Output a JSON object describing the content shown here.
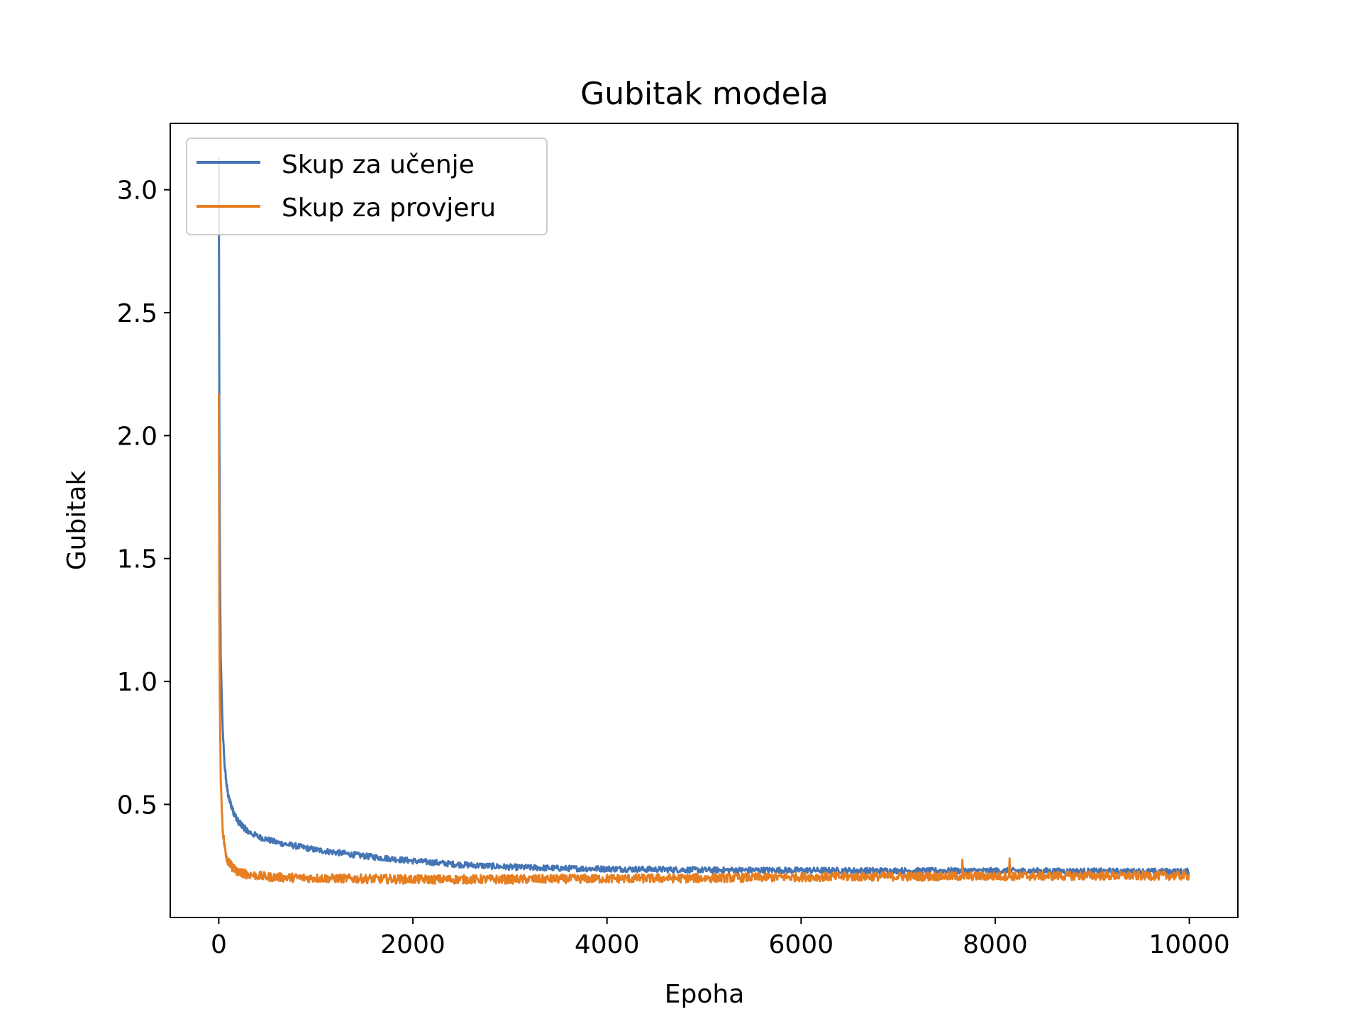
{
  "chart_data": {
    "type": "line",
    "title": "Gubitak modela",
    "xlabel": "Epoha",
    "ylabel": "Gubitak",
    "xlim": [
      -500,
      10500
    ],
    "ylim": [
      0.04,
      3.27
    ],
    "xticks": [
      0,
      2000,
      4000,
      6000,
      8000,
      10000
    ],
    "xtick_labels": [
      "0",
      "2000",
      "4000",
      "6000",
      "8000",
      "10000"
    ],
    "yticks": [
      0.5,
      1.0,
      1.5,
      2.0,
      2.5,
      3.0
    ],
    "ytick_labels": [
      "0.5",
      "1.0",
      "1.5",
      "2.0",
      "2.5",
      "3.0"
    ],
    "grid": false,
    "legend": {
      "position": "upper-left"
    },
    "series": [
      {
        "name": "Skup za učenje",
        "color": "#4575b4",
        "points": [
          [
            0,
            3.13
          ],
          [
            5,
            2.2
          ],
          [
            10,
            1.6
          ],
          [
            20,
            1.1
          ],
          [
            40,
            0.8
          ],
          [
            60,
            0.66
          ],
          [
            80,
            0.58
          ],
          [
            100,
            0.53
          ],
          [
            150,
            0.47
          ],
          [
            200,
            0.43
          ],
          [
            300,
            0.39
          ],
          [
            400,
            0.37
          ],
          [
            600,
            0.345
          ],
          [
            800,
            0.33
          ],
          [
            1000,
            0.315
          ],
          [
            1500,
            0.29
          ],
          [
            2000,
            0.27
          ],
          [
            2500,
            0.255
          ],
          [
            3000,
            0.245
          ],
          [
            3500,
            0.24
          ],
          [
            4000,
            0.238
          ],
          [
            5000,
            0.233
          ],
          [
            6000,
            0.232
          ],
          [
            7000,
            0.23
          ],
          [
            8000,
            0.23
          ],
          [
            9000,
            0.228
          ],
          [
            10000,
            0.227
          ]
        ],
        "noise": 0.012
      },
      {
        "name": "Skup za provjeru",
        "color": "#e67e22",
        "points": [
          [
            0,
            2.17
          ],
          [
            5,
            1.4
          ],
          [
            10,
            0.95
          ],
          [
            20,
            0.6
          ],
          [
            40,
            0.4
          ],
          [
            60,
            0.33
          ],
          [
            80,
            0.29
          ],
          [
            100,
            0.265
          ],
          [
            150,
            0.24
          ],
          [
            200,
            0.225
          ],
          [
            300,
            0.215
          ],
          [
            500,
            0.205
          ],
          [
            1000,
            0.2
          ],
          [
            2000,
            0.195
          ],
          [
            3000,
            0.195
          ],
          [
            4000,
            0.198
          ],
          [
            5000,
            0.2
          ],
          [
            6000,
            0.205
          ],
          [
            7000,
            0.207
          ],
          [
            8000,
            0.208
          ],
          [
            9000,
            0.21
          ],
          [
            10000,
            0.21
          ]
        ],
        "noise": 0.018,
        "spikes": [
          [
            7660,
            0.275
          ],
          [
            8150,
            0.28
          ]
        ]
      }
    ]
  }
}
